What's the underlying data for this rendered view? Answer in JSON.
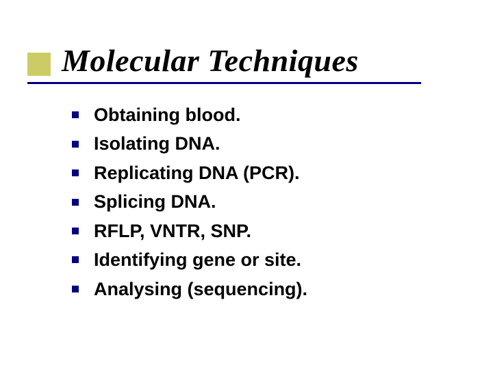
{
  "slide": {
    "title": "Molecular Techniques",
    "accent_color": "#cccc66",
    "underline_color": "#000080",
    "bullet_color": "#000080",
    "title_color": "#000000",
    "text_color": "#000000",
    "background_color": "#ffffff",
    "title_fontsize": 46,
    "bullet_fontsize": 27,
    "bullets": [
      "Obtaining  blood.",
      "Isolating DNA.",
      "Replicating DNA (PCR).",
      "Splicing DNA.",
      "RFLP, VNTR, SNP.",
      "Identifying gene or site.",
      "Analysing (sequencing)."
    ]
  }
}
